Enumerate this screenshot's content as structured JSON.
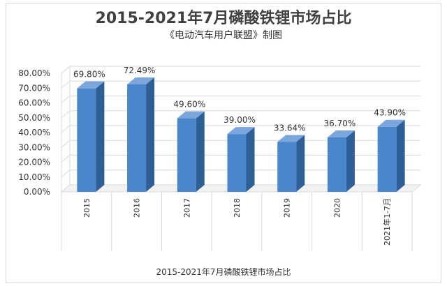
{
  "header": {
    "title": "2015-2021年7月磷酸铁锂市场占比",
    "subtitle": "《电动汽车用户联盟》制图"
  },
  "chart_data": {
    "type": "bar",
    "title": "2015-2021年7月磷酸铁锂市场占比",
    "subtitle": "《电动汽车用户联盟》制图",
    "xlabel": "2015-2021年7月磷酸铁锂市场占比",
    "ylabel": "",
    "categories": [
      "2015",
      "2016",
      "2017",
      "2018",
      "2019",
      "2020",
      "2021年1-7月"
    ],
    "values": [
      69.8,
      72.49,
      49.6,
      39.0,
      33.64,
      36.7,
      43.9
    ],
    "data_labels": [
      "69.80%",
      "72.49%",
      "49.60%",
      "39.00%",
      "33.64%",
      "36.70%",
      "43.90%"
    ],
    "ylim": [
      0,
      80
    ],
    "yticks": [
      0,
      10,
      20,
      30,
      40,
      50,
      60,
      70,
      80
    ],
    "ytick_labels": [
      "0.00%",
      "10.00%",
      "20.00%",
      "30.00%",
      "40.00%",
      "50.00%",
      "60.00%",
      "70.00%",
      "80.00%"
    ],
    "grid": true,
    "legend": "none",
    "colors": {
      "bar_front": "#4a86cc",
      "bar_side": "#2f5f97",
      "bar_top": "#7aa6dc",
      "grid": "#d9d9d9"
    }
  }
}
